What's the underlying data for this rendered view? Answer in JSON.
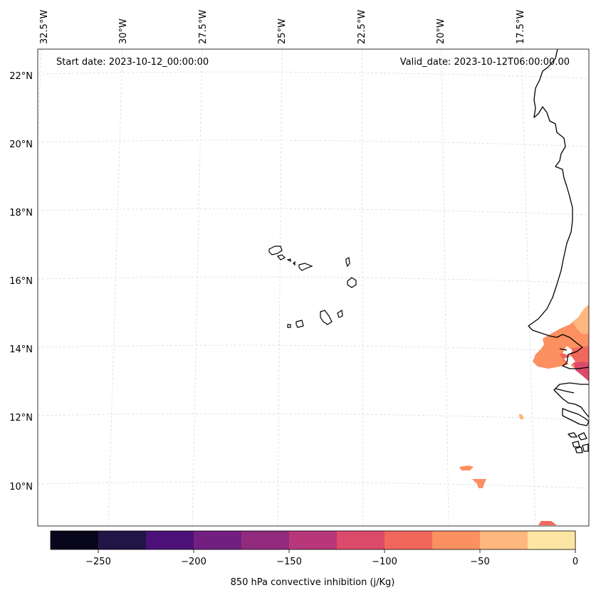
{
  "header": {
    "start_date": "Start date: 2023-10-12_00:00:00",
    "valid_date": "Valid_date: 2023-10-12T06:00:00.00"
  },
  "longitude_labels": [
    "32.5°W",
    "30°W",
    "27.5°W",
    "25°W",
    "22.5°W",
    "20°W",
    "17.5°W"
  ],
  "latitude_labels": [
    "22°N",
    "20°N",
    "18°N",
    "16°N",
    "14°N",
    "12°N",
    "10°N"
  ],
  "colorbar": {
    "label": "850 hPa convective inhibition (j/Kg)",
    "tick_labels": [
      "−250",
      "−200",
      "−150",
      "−100",
      "−50",
      "0"
    ],
    "colors": [
      "#07061b",
      "#211546",
      "#4c1178",
      "#721f81",
      "#922a7e",
      "#b8377a",
      "#dc4a6b",
      "#f2675c",
      "#fc9060",
      "#feb77e",
      "#fde6a3"
    ]
  },
  "map_colors": {
    "coastline": "#000000",
    "gridline": "#d9d9d9"
  }
}
